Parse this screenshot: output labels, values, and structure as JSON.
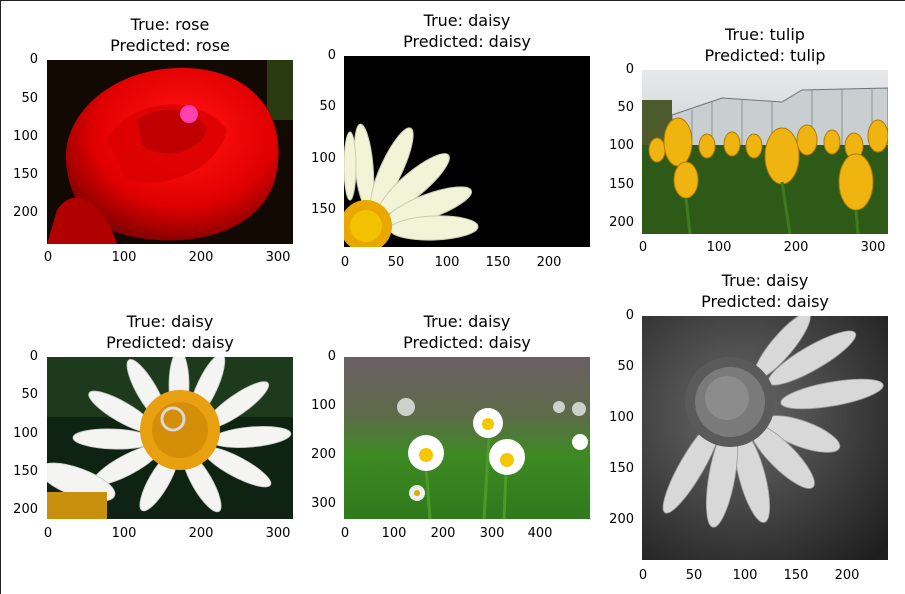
{
  "panels": [
    {
      "title": "True: rose\nPredicted: rose",
      "yticks": [
        "0",
        "50",
        "100",
        "150",
        "200"
      ],
      "xticks": [
        "0",
        "100",
        "200",
        "300"
      ],
      "image": "red rose close-up on dark background",
      "true_label": "rose",
      "predicted_label": "rose"
    },
    {
      "title": "True: daisy\nPredicted: daisy",
      "yticks": [
        "0",
        "50",
        "100",
        "150"
      ],
      "xticks": [
        "0",
        "50",
        "100",
        "150",
        "200"
      ],
      "image": "white daisy petals on black background",
      "true_label": "daisy",
      "predicted_label": "daisy"
    },
    {
      "title": "True: tulip\nPredicted: tulip",
      "yticks": [
        "0",
        "50",
        "100",
        "150",
        "200"
      ],
      "xticks": [
        "0",
        "100",
        "200",
        "300"
      ],
      "image": "yellow tulips in front of greenhouse",
      "true_label": "tulip",
      "predicted_label": "tulip"
    },
    {
      "title": "True: daisy\nPredicted: daisy",
      "yticks": [
        "0",
        "50",
        "100",
        "150",
        "200"
      ],
      "xticks": [
        "0",
        "100",
        "200",
        "300"
      ],
      "image": "white daisy with ring on orange center",
      "true_label": "daisy",
      "predicted_label": "daisy"
    },
    {
      "title": "True: daisy\nPredicted: daisy",
      "yticks": [
        "0",
        "100",
        "200",
        "300"
      ],
      "xticks": [
        "0",
        "100",
        "200",
        "300",
        "400"
      ],
      "image": "small daisies in green meadow",
      "true_label": "daisy",
      "predicted_label": "daisy"
    },
    {
      "title": "True: daisy\nPredicted: daisy",
      "yticks": [
        "0",
        "50",
        "100",
        "150",
        "200"
      ],
      "xticks": [
        "0",
        "50",
        "100",
        "150",
        "200"
      ],
      "image": "grayscale daisy close-up",
      "true_label": "daisy",
      "predicted_label": "daisy"
    }
  ],
  "colors": {
    "background": "#ffffff",
    "text": "#000000"
  }
}
